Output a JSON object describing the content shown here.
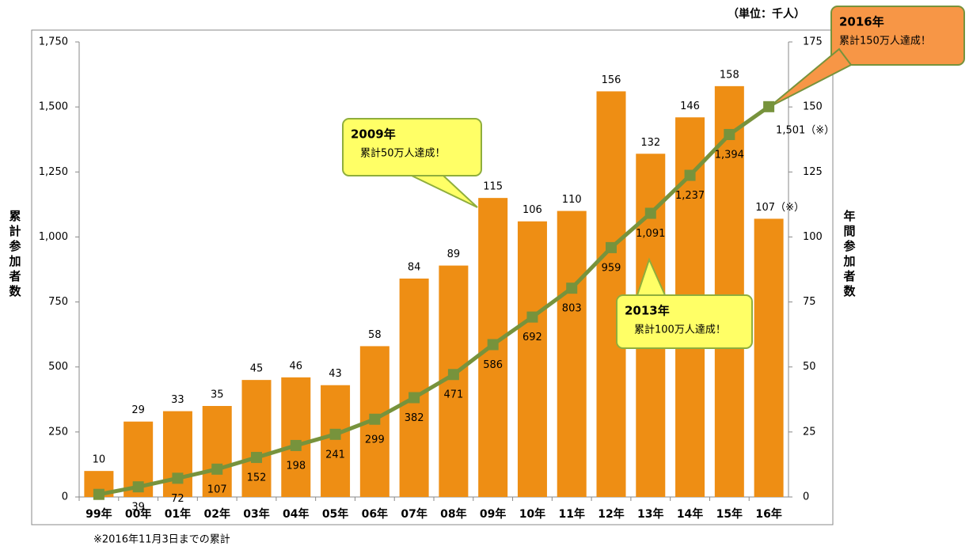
{
  "chart_data": {
    "type": "bar",
    "unit_note": "（単位：千人）",
    "footnote": "※2016年11月3日までの累計",
    "y_label": "累計参加者数",
    "y2_label": "年間参加者数",
    "categories": [
      "99年",
      "00年",
      "01年",
      "02年",
      "03年",
      "04年",
      "05年",
      "06年",
      "07年",
      "08年",
      "09年",
      "10年",
      "11年",
      "12年",
      "13年",
      "14年",
      "15年",
      "16年"
    ],
    "series": [
      {
        "name": "年間参加者数",
        "type": "bar",
        "axis": "y2",
        "color": "#ee8e14",
        "values": [
          10,
          29,
          33,
          35,
          45,
          46,
          43,
          58,
          84,
          89,
          115,
          106,
          110,
          156,
          132,
          146,
          158,
          107
        ],
        "value_labels": [
          "10",
          "29",
          "33",
          "35",
          "45",
          "46",
          "43",
          "58",
          "84",
          "89",
          "115",
          "106",
          "110",
          "156",
          "132",
          "146",
          "158",
          "107（※）"
        ]
      },
      {
        "name": "累計参加者数",
        "type": "line",
        "axis": "y",
        "color": "#77933c",
        "values": [
          10,
          39,
          72,
          107,
          152,
          198,
          241,
          299,
          382,
          471,
          586,
          692,
          803,
          959,
          1091,
          1237,
          1394,
          1501
        ],
        "value_labels": [
          null,
          "39",
          "72",
          "107",
          "152",
          "198",
          "241",
          "299",
          "382",
          "471",
          "586",
          "692",
          "803",
          "959",
          "1,091",
          "1,237",
          "1,394",
          "1,501（※）"
        ]
      }
    ],
    "ylim": [
      0,
      1750
    ],
    "yticks": [
      0,
      250,
      500,
      750,
      {
        "value": 1000,
        "label": "1,000"
      },
      {
        "value": 1250,
        "label": "1,250"
      },
      {
        "value": 1500,
        "label": "1,500"
      },
      {
        "value": 1750,
        "label": "1,750"
      }
    ],
    "y2lim": [
      0,
      175
    ],
    "y2ticks": [
      0,
      25,
      50,
      75,
      100,
      125,
      150,
      175
    ],
    "annotations": [
      {
        "title": "2009年",
        "text": "累計50万人達成！"
      },
      {
        "title": "2013年",
        "text": "累計100万人達成！"
      },
      {
        "title": "2016年",
        "text": "累計150万人達成！"
      }
    ]
  }
}
